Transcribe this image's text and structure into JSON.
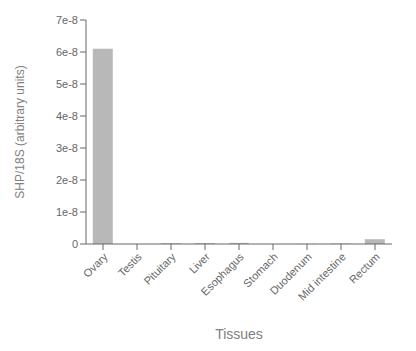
{
  "chart_data": {
    "type": "bar",
    "categories": [
      "Ovary",
      "Testis",
      "Pituitary",
      "Liver",
      "Esophagus",
      "Stomach",
      "Duodenum",
      "Mid intestine",
      "Rectum"
    ],
    "values": [
      6.1e-08,
      0.0,
      2.5e-10,
      3e-10,
      3.5e-10,
      0.0,
      5e-11,
      1.5e-10,
      1.5e-09
    ],
    "color": "#b8b8b8",
    "xlabel": "Tissues",
    "ylabel": "SHP/18S (arbitrary units)",
    "ylim": [
      0,
      7e-08
    ],
    "yticks": [
      0,
      {
        "value": 1e-08,
        "label": "1e-8"
      },
      {
        "value": 2e-08,
        "label": "2e-8"
      },
      {
        "value": 3e-08,
        "label": "3e-8"
      },
      {
        "value": 4e-08,
        "label": "4e-8"
      },
      {
        "value": 5e-08,
        "label": "5e-8"
      },
      {
        "value": 6e-08,
        "label": "6e-8"
      },
      {
        "value": 7e-08,
        "label": "7e-8"
      }
    ],
    "grid": false
  }
}
